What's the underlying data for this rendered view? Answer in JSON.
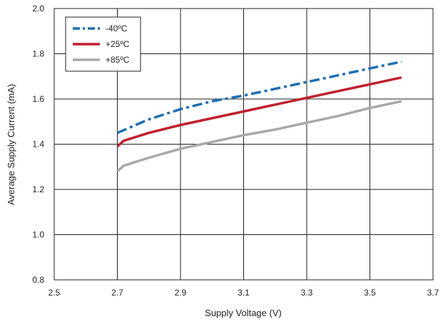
{
  "chart_data": {
    "type": "line",
    "xlabel": "Supply Voltage (V)",
    "ylabel": "Average Supply Current (mA)",
    "xlim": [
      2.5,
      3.7
    ],
    "ylim": [
      0.8,
      2.0
    ],
    "xticks": [
      2.5,
      2.7,
      2.9,
      3.1,
      3.3,
      3.5,
      3.7
    ],
    "yticks": [
      0.8,
      1.0,
      1.2,
      1.4,
      1.6,
      1.8,
      2.0
    ],
    "xtick_labels": [
      "2.5",
      "2.7",
      "2.9",
      "3.1",
      "3.3",
      "3.5",
      "3.7"
    ],
    "ytick_labels": [
      "0.8",
      "1.0",
      "1.2",
      "1.4",
      "1.6",
      "1.8",
      "2.0"
    ],
    "grid": true,
    "legend_position": "top-left",
    "series": [
      {
        "name": "-40ºC",
        "color": "#1f6fb2",
        "style": "dash-dot",
        "x": [
          2.7,
          2.8,
          2.9,
          3.0,
          3.1,
          3.2,
          3.3,
          3.4,
          3.5,
          3.6
        ],
        "y": [
          1.45,
          1.51,
          1.555,
          1.59,
          1.615,
          1.645,
          1.675,
          1.705,
          1.735,
          1.765
        ]
      },
      {
        "name": "+25ºC",
        "color": "#c0202e",
        "style": "solid",
        "x": [
          2.7,
          2.72,
          2.8,
          2.9,
          3.0,
          3.1,
          3.2,
          3.3,
          3.4,
          3.5,
          3.6
        ],
        "y": [
          1.39,
          1.415,
          1.45,
          1.485,
          1.515,
          1.545,
          1.575,
          1.605,
          1.635,
          1.665,
          1.695
        ]
      },
      {
        "name": "+85ºC",
        "color": "#a8a8a8",
        "style": "solid",
        "x": [
          2.7,
          2.72,
          2.8,
          2.9,
          3.0,
          3.1,
          3.2,
          3.3,
          3.4,
          3.5,
          3.6
        ],
        "y": [
          1.28,
          1.305,
          1.34,
          1.38,
          1.41,
          1.44,
          1.465,
          1.495,
          1.525,
          1.56,
          1.59
        ]
      }
    ]
  }
}
